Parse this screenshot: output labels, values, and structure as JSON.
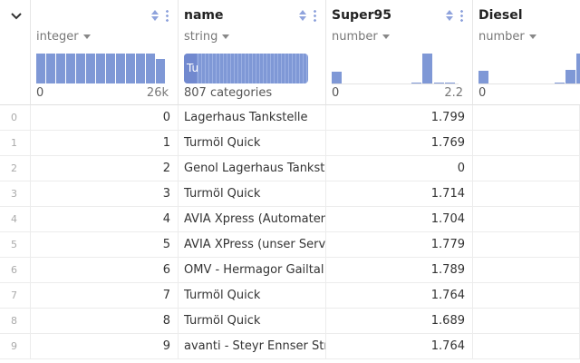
{
  "columns": [
    {
      "name": "",
      "type": "integer",
      "axis_min": "0",
      "axis_max": "26k",
      "histogram": [
        1,
        1,
        1,
        1,
        1,
        1,
        1,
        1,
        1,
        1,
        1,
        1,
        0.82
      ]
    },
    {
      "name": "name",
      "type": "string",
      "summary": "807 categories",
      "top_label": "Tu"
    },
    {
      "name": "Super95",
      "type": "number",
      "axis_min": "0",
      "axis_max": "2.2",
      "histogram": [
        0.38,
        0,
        0,
        0,
        0,
        0,
        0,
        0.04,
        1,
        0.04,
        0.04
      ]
    },
    {
      "name": "Diesel",
      "type": "number",
      "axis_min": "0",
      "histogram": [
        0.42,
        0,
        0,
        0,
        0,
        0,
        0,
        0.04,
        0.45,
        1
      ]
    }
  ],
  "rows": [
    {
      "idx": "0",
      "id": "0",
      "name": "Lagerhaus Tankstelle",
      "super95": "1.799"
    },
    {
      "idx": "1",
      "id": "1",
      "name": "Turmöl Quick",
      "super95": "1.769"
    },
    {
      "idx": "2",
      "id": "2",
      "name": "Genol Lagerhaus Tankstelle",
      "super95": "0"
    },
    {
      "idx": "3",
      "id": "3",
      "name": "Turmöl Quick",
      "super95": "1.714"
    },
    {
      "idx": "4",
      "id": "4",
      "name": "AVIA Xpress (Automaten)",
      "super95": "1.704"
    },
    {
      "idx": "5",
      "id": "5",
      "name": "AVIA XPress (unser Service)",
      "super95": "1.779"
    },
    {
      "idx": "6",
      "id": "6",
      "name": "OMV - Hermagor Gailtal",
      "super95": "1.789"
    },
    {
      "idx": "7",
      "id": "7",
      "name": "Turmöl Quick",
      "super95": "1.764"
    },
    {
      "idx": "8",
      "id": "8",
      "name": "Turmöl Quick",
      "super95": "1.689"
    },
    {
      "idx": "9",
      "id": "9",
      "name": "avanti - Steyr Ennser Straße",
      "super95": "1.764"
    }
  ]
}
